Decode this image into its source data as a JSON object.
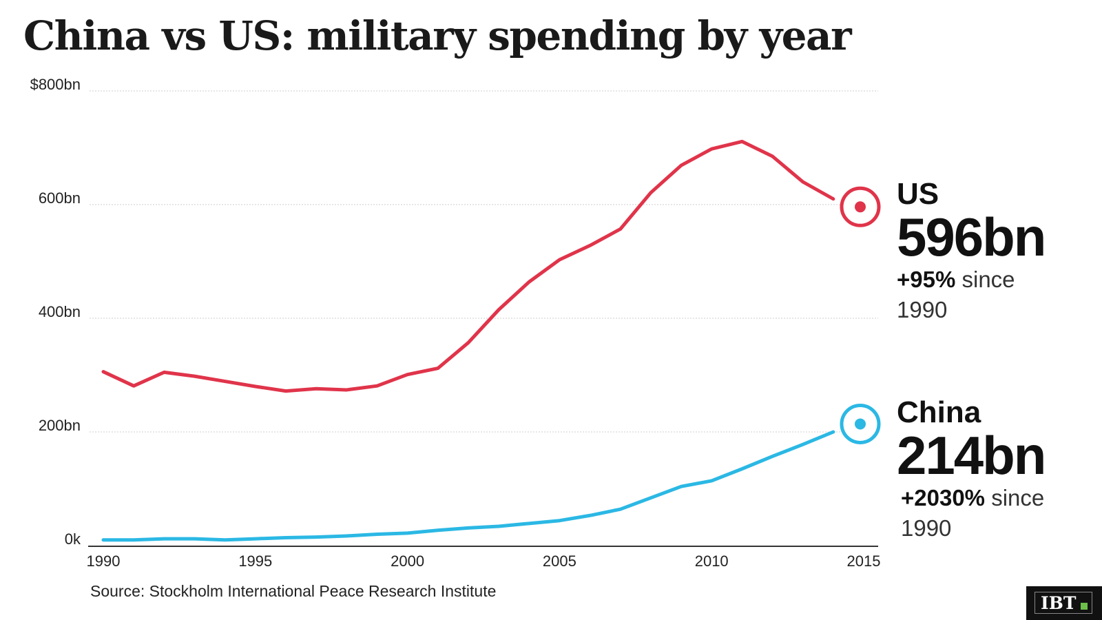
{
  "title": "China vs US: military spending by year",
  "source": "Source: Stockholm International Peace Research Institute",
  "logo_text": "IBT",
  "chart_data": {
    "type": "line",
    "title": "China vs US: military spending by year",
    "xlabel": "",
    "ylabel": "",
    "xlim": [
      1990,
      2015
    ],
    "ylim": [
      0,
      800
    ],
    "grid": true,
    "x_ticks": [
      "1990",
      "1995",
      "2000",
      "2005",
      "2010",
      "2015"
    ],
    "y_ticks": [
      {
        "value": 0,
        "label": "0k"
      },
      {
        "value": 200,
        "label": "200bn"
      },
      {
        "value": 400,
        "label": "400bn"
      },
      {
        "value": 600,
        "label": "600bn"
      },
      {
        "value": 800,
        "label": "$800bn"
      }
    ],
    "x": [
      1990,
      1991,
      1992,
      1993,
      1994,
      1995,
      1996,
      1997,
      1998,
      1999,
      2000,
      2001,
      2002,
      2003,
      2004,
      2005,
      2006,
      2007,
      2008,
      2009,
      2010,
      2011,
      2012,
      2013,
      2014
    ],
    "series": [
      {
        "name": "US",
        "color": "#e0344a",
        "values": [
          306,
          281,
          305,
          298,
          289,
          280,
          272,
          276,
          274,
          281,
          301,
          312,
          357,
          415,
          464,
          503,
          528,
          557,
          621,
          669,
          698,
          711,
          685,
          640,
          610
        ],
        "endpoint": {
          "x": 2015,
          "y": 596
        }
      },
      {
        "name": "China",
        "color": "#2bb8e4",
        "values": [
          10,
          10,
          12,
          12,
          10,
          12,
          14,
          15,
          17,
          20,
          22,
          27,
          31,
          34,
          39,
          44,
          53,
          64,
          84,
          104,
          114,
          135,
          157,
          178,
          200
        ],
        "endpoint": {
          "x": 2015,
          "y": 214
        }
      }
    ],
    "annotations": [
      {
        "series": "US",
        "name": "US",
        "value": "596bn",
        "change": "+95%",
        "since": "since",
        "year": "1990"
      },
      {
        "series": "China",
        "name": "China",
        "value": "214bn",
        "change": "+2030%",
        "since": "since",
        "year": "1990"
      }
    ]
  }
}
